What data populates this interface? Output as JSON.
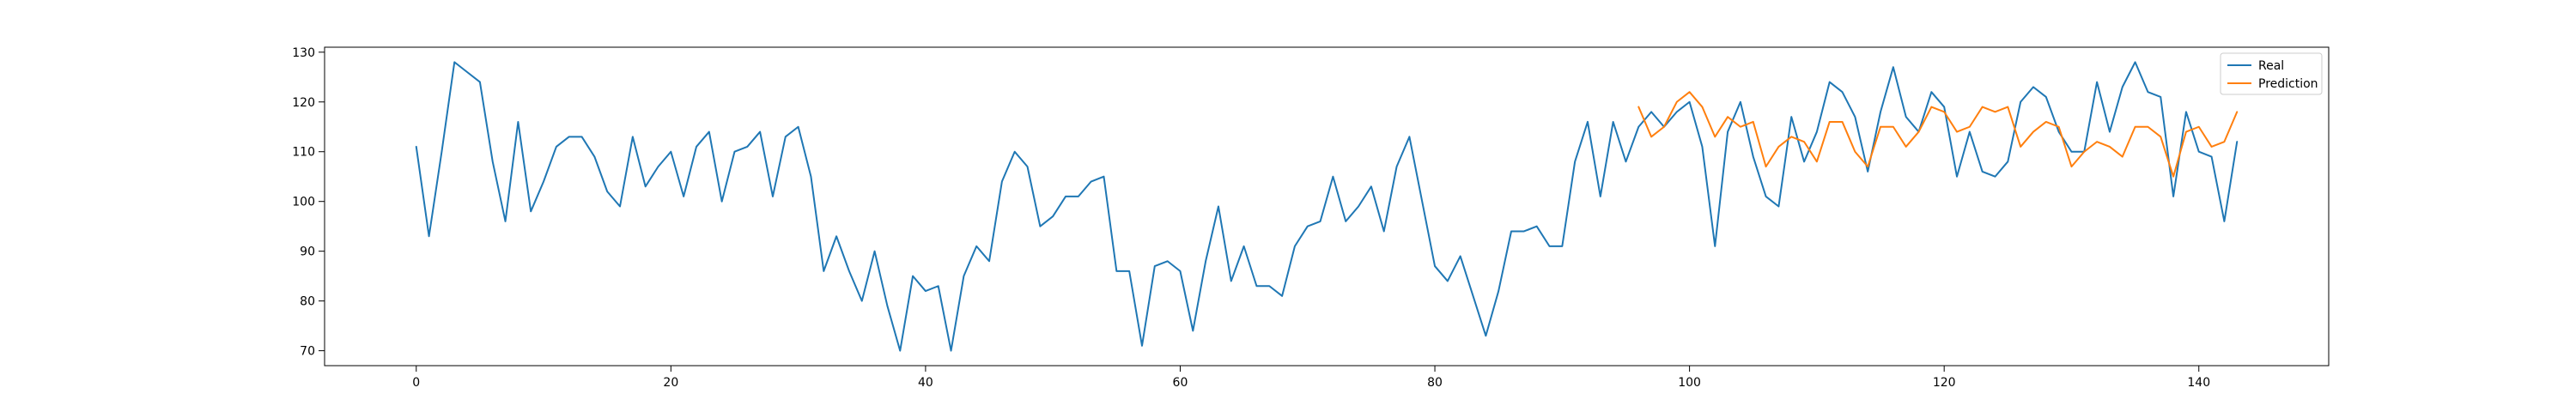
{
  "chart_data": {
    "type": "line",
    "title": "",
    "xlabel": "",
    "ylabel": "",
    "xlim": [
      -7.2,
      150.2
    ],
    "ylim": [
      67,
      131
    ],
    "xticks": [
      0,
      20,
      40,
      60,
      80,
      100,
      120,
      140
    ],
    "yticks": [
      70,
      80,
      90,
      100,
      110,
      120,
      130
    ],
    "grid": false,
    "legend": "top-right",
    "series": [
      {
        "name": "Real",
        "color": "#1f77b4",
        "x_start": 0,
        "values": [
          111,
          93,
          110,
          128,
          126,
          124,
          108,
          96,
          116,
          98,
          104,
          111,
          113,
          113,
          109,
          102,
          99,
          113,
          103,
          107,
          110,
          101,
          111,
          114,
          100,
          110,
          111,
          114,
          101,
          113,
          115,
          105,
          86,
          93,
          86,
          80,
          90,
          79,
          70,
          85,
          82,
          83,
          70,
          85,
          91,
          88,
          104,
          110,
          107,
          95,
          97,
          101,
          101,
          104,
          105,
          86,
          86,
          71,
          87,
          88,
          86,
          74,
          88,
          99,
          84,
          91,
          83,
          83,
          81,
          91,
          95,
          96,
          105,
          96,
          99,
          103,
          94,
          107,
          113,
          100,
          87,
          84,
          89,
          81,
          73,
          82,
          94,
          94,
          95,
          91,
          91,
          108,
          116,
          101,
          116,
          108,
          115,
          118,
          115,
          118,
          120,
          111,
          91,
          114,
          120,
          109,
          101,
          99,
          117,
          108,
          114,
          124,
          122,
          117,
          106,
          118,
          127,
          117,
          114,
          122,
          119,
          105,
          114,
          106,
          105,
          108,
          120,
          123,
          121,
          114,
          110,
          110,
          124,
          114,
          123,
          128,
          122,
          121,
          101,
          118,
          110,
          109,
          96,
          112
        ]
      },
      {
        "name": "Prediction",
        "color": "#ff7f0e",
        "x_start": 96,
        "values": [
          119,
          113,
          115,
          120,
          122,
          119,
          113,
          117,
          115,
          116,
          107,
          111,
          113,
          112,
          108,
          116,
          116,
          110,
          107,
          115,
          115,
          111,
          114,
          119,
          118,
          114,
          115,
          119,
          118,
          119,
          111,
          114,
          116,
          115,
          107,
          110,
          112,
          111,
          109,
          115,
          115,
          113,
          105,
          114,
          115,
          111,
          112,
          118
        ]
      }
    ]
  }
}
